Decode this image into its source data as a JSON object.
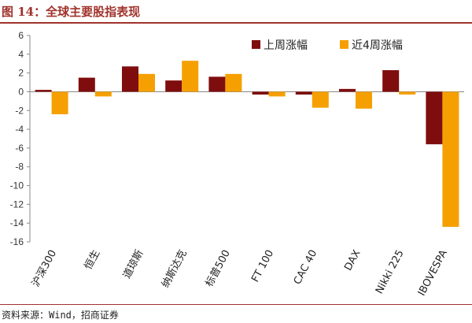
{
  "header": {
    "title": "图 14：全球主要股指表现"
  },
  "footer": {
    "source": "资料来源：Wind，招商证券"
  },
  "colors": {
    "series1": "#7f0d0d",
    "series2": "#f5a000",
    "title": "#a0322b"
  },
  "chart_data": {
    "type": "bar",
    "title": "",
    "xlabel": "",
    "ylabel": "",
    "ylim": [
      -16,
      6
    ],
    "yticks": [
      6,
      4,
      2,
      0,
      -2,
      -4,
      -6,
      -8,
      -10,
      -12,
      -14,
      -16
    ],
    "grid": false,
    "legend_position": "top-right",
    "categories": [
      "沪深300",
      "恒生",
      "道琼斯",
      "纳斯达克",
      "标普500",
      "FT 100",
      "CAC 40",
      "DAX",
      "Nikki 225",
      "IBOVESPA"
    ],
    "series": [
      {
        "name": "上周涨幅",
        "values": [
          0.2,
          1.5,
          2.7,
          1.2,
          1.6,
          -0.3,
          -0.3,
          0.3,
          2.3,
          -5.6
        ]
      },
      {
        "name": "近4周涨幅",
        "values": [
          -2.4,
          -0.5,
          1.9,
          3.3,
          1.9,
          -0.5,
          -1.7,
          -1.8,
          -0.3,
          -14.4
        ]
      }
    ]
  }
}
